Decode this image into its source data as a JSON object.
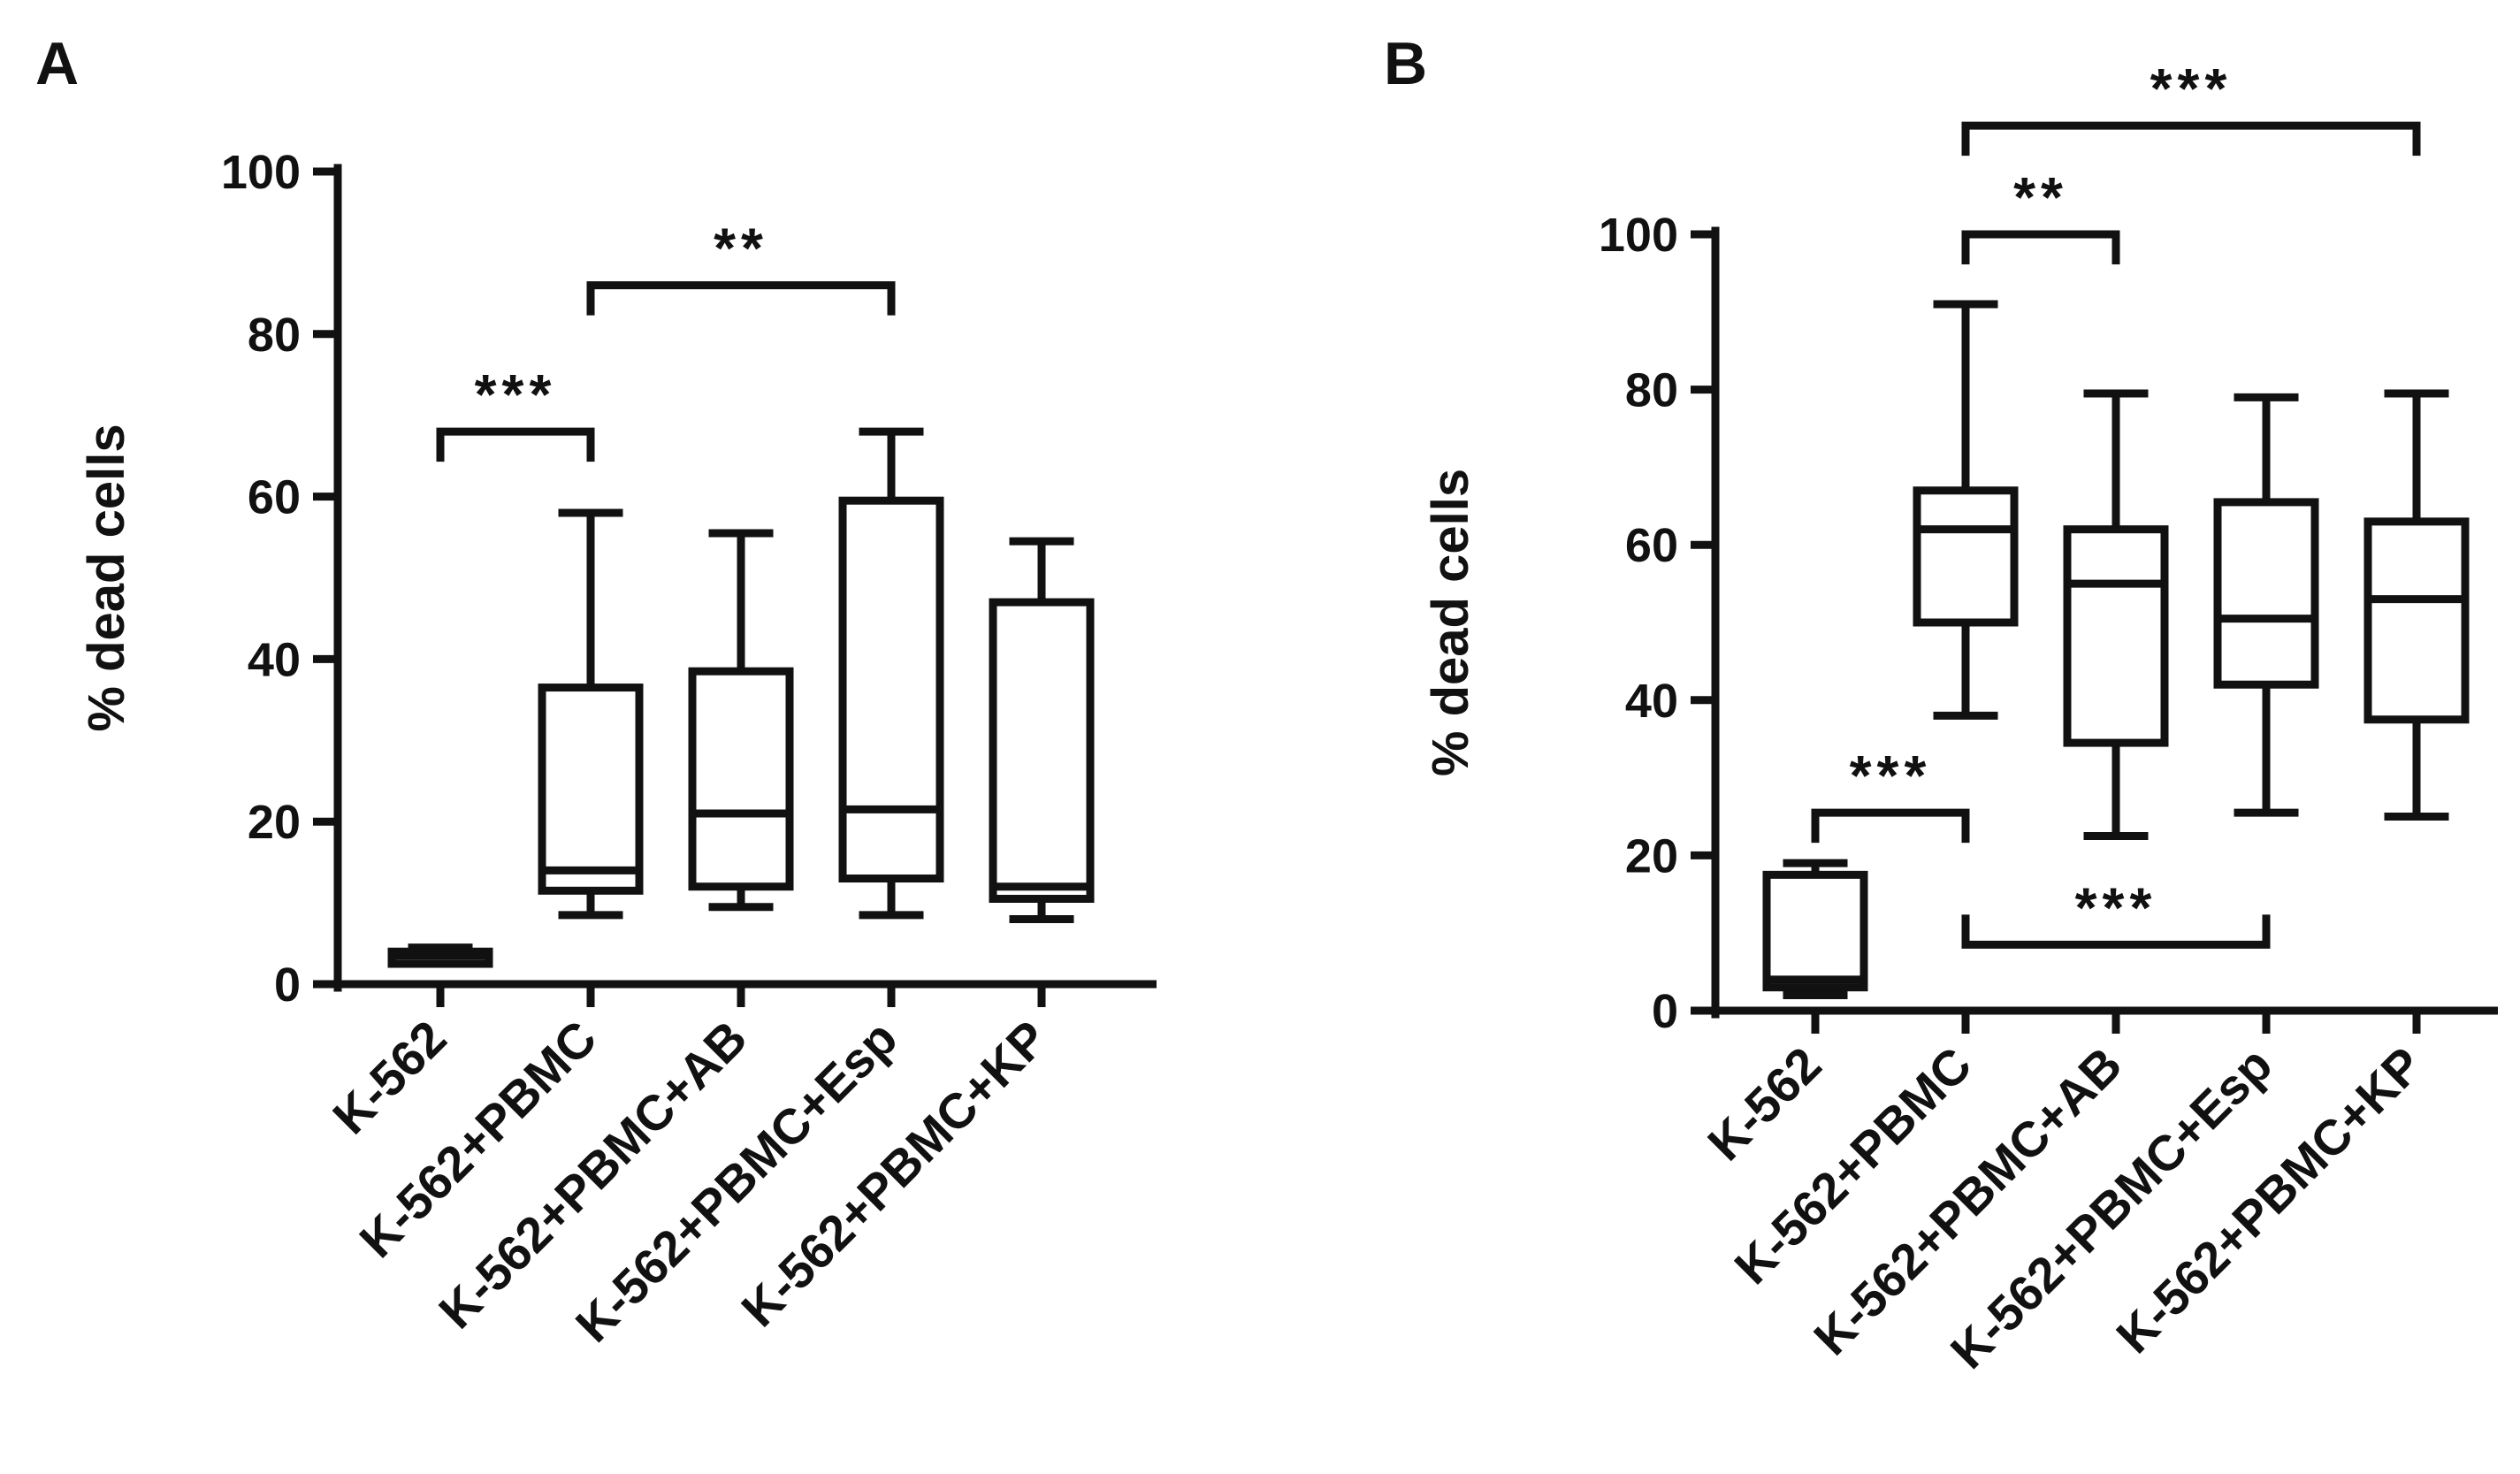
{
  "chart_data": [
    {
      "panel": "A",
      "type": "box",
      "ylabel": "% dead cells",
      "ylim": [
        0,
        100
      ],
      "yticks": [
        0,
        20,
        40,
        60,
        80,
        100
      ],
      "categories": [
        "K-562",
        "K-562+PBMC",
        "K-562+PBMC+AB",
        "K-562+PBMC+Esp",
        "K-562+PBMC+KP"
      ],
      "boxes": [
        {
          "min": 2.5,
          "q1": 2.5,
          "median": 3.5,
          "q3": 4.0,
          "max": 4.5
        },
        {
          "min": 8.5,
          "q1": 11.5,
          "median": 14.0,
          "q3": 36.5,
          "max": 58.0
        },
        {
          "min": 9.5,
          "q1": 12.0,
          "median": 21.0,
          "q3": 38.5,
          "max": 55.5
        },
        {
          "min": 8.5,
          "q1": 13.0,
          "median": 21.5,
          "q3": 59.5,
          "max": 68.0
        },
        {
          "min": 8.0,
          "q1": 10.5,
          "median": 12.0,
          "q3": 47.0,
          "max": 54.5
        }
      ],
      "significance": [
        {
          "from": 0,
          "to": 1,
          "label": "***",
          "level": 68,
          "direction": "up"
        },
        {
          "from": 1,
          "to": 3,
          "label": "**",
          "level": 86,
          "direction": "up"
        }
      ]
    },
    {
      "panel": "B",
      "type": "box",
      "ylabel": "% dead cells",
      "ylim": [
        0,
        100
      ],
      "yticks": [
        0,
        20,
        40,
        60,
        80,
        100
      ],
      "categories": [
        "K-562",
        "K-562+PBMC",
        "K-562+PBMC+AB",
        "K-562+PBMC+Esp",
        "K-562+PBMC+KP"
      ],
      "boxes": [
        {
          "min": 2.0,
          "q1": 3.0,
          "median": 4.0,
          "q3": 17.5,
          "max": 19.0
        },
        {
          "min": 38.0,
          "q1": 50.0,
          "median": 62.0,
          "q3": 67.0,
          "max": 91.0
        },
        {
          "min": 22.5,
          "q1": 34.5,
          "median": 55.0,
          "q3": 62.0,
          "max": 79.5
        },
        {
          "min": 25.5,
          "q1": 42.0,
          "median": 50.5,
          "q3": 65.5,
          "max": 79.0
        },
        {
          "min": 25.0,
          "q1": 37.5,
          "median": 53.0,
          "q3": 63.0,
          "max": 79.5
        }
      ],
      "significance": [
        {
          "from": 0,
          "to": 1,
          "label": "***",
          "level": 25.5,
          "direction": "up"
        },
        {
          "from": 1,
          "to": 3,
          "label": "***",
          "level": 8.5,
          "direction": "down"
        },
        {
          "from": 1,
          "to": 2,
          "label": "**",
          "level": 100,
          "direction": "up"
        },
        {
          "from": 1,
          "to": 4,
          "label": "***",
          "level": 114,
          "direction": "up"
        }
      ]
    }
  ]
}
